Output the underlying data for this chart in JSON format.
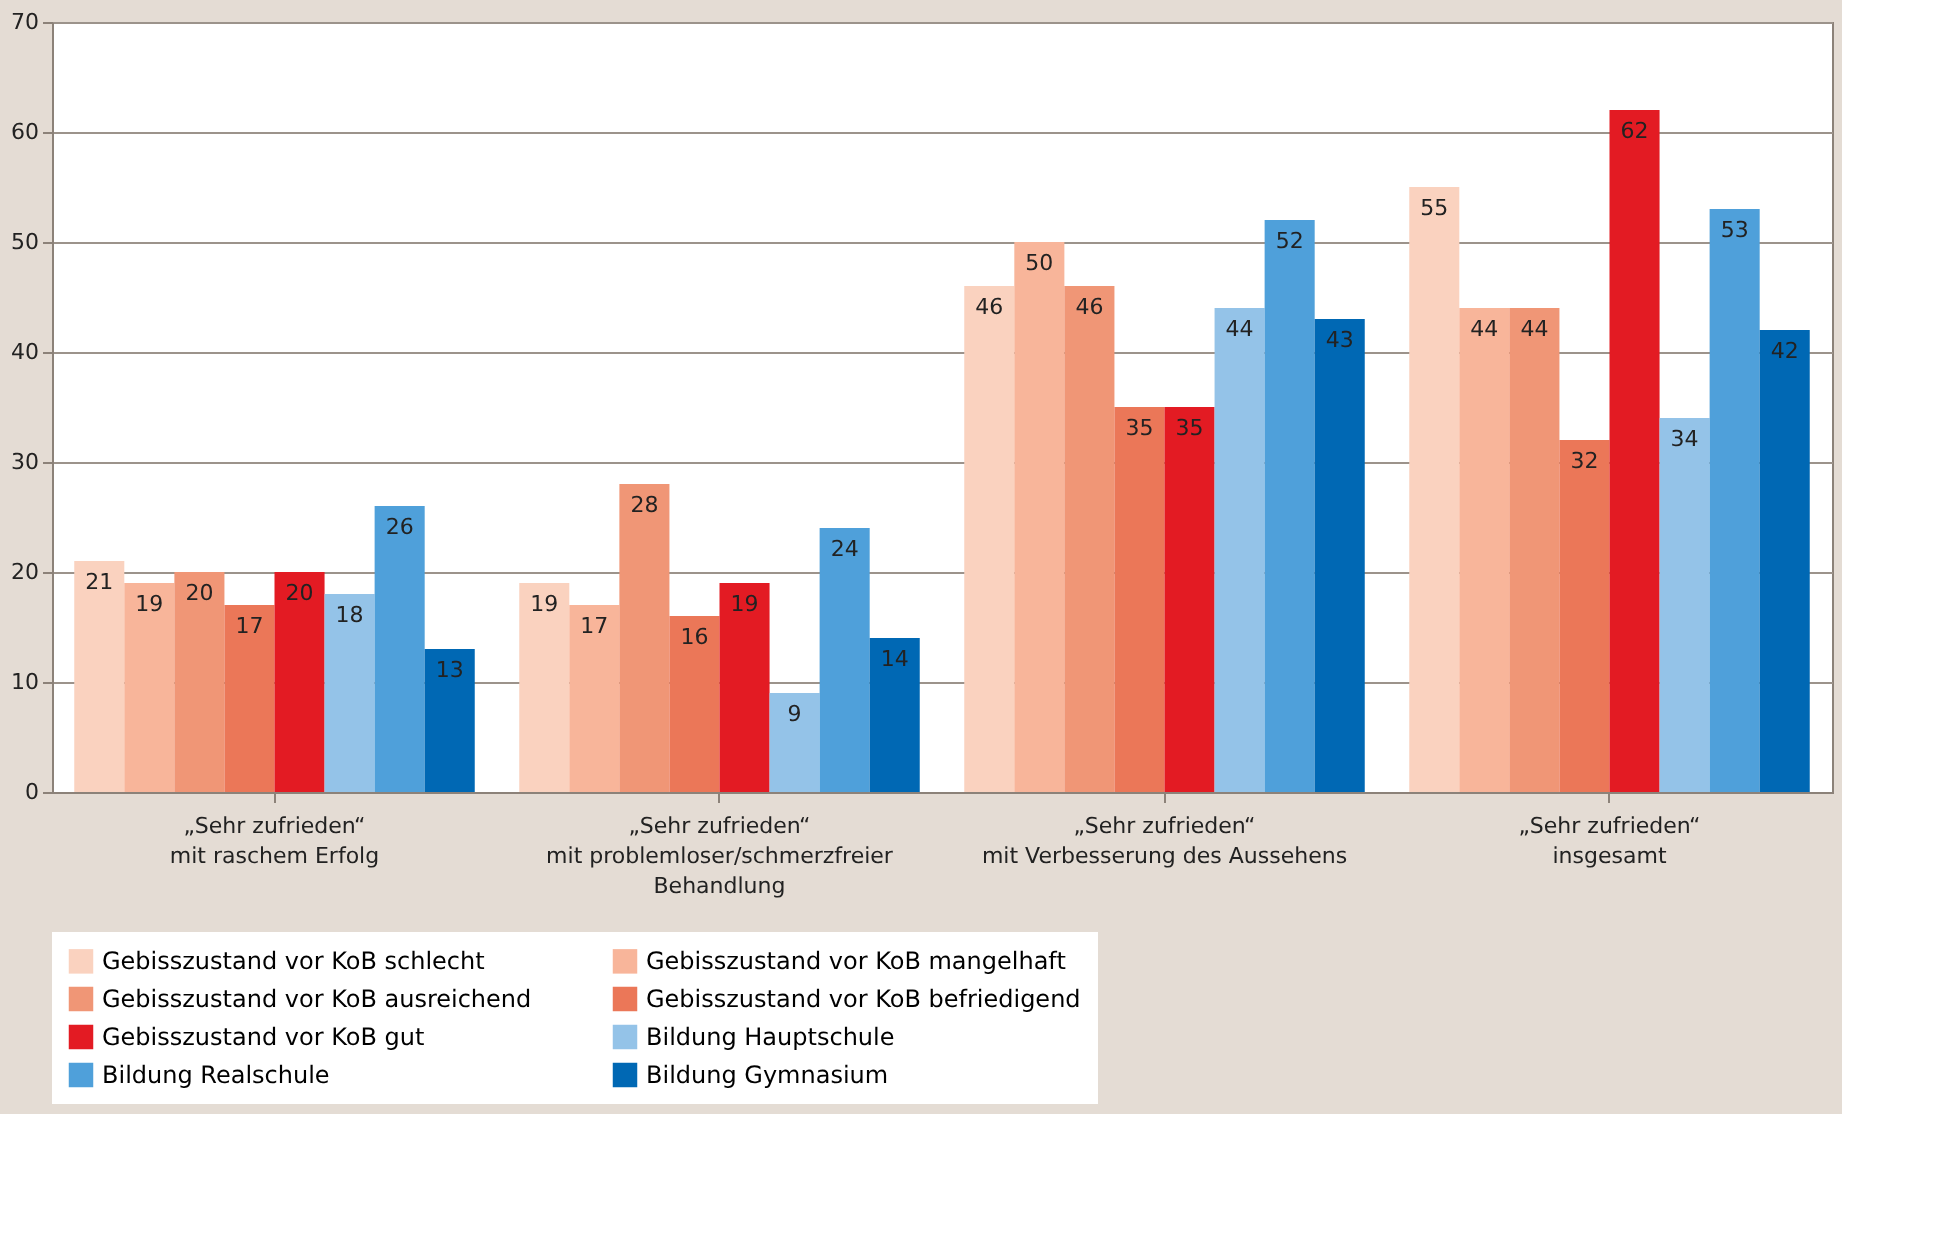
{
  "chart_data": {
    "type": "bar",
    "categories": [
      "„Sehr zufrieden“\nmit raschem Erfolg",
      "„Sehr zufrieden“\nmit problemloser/schmerzfreier\nBehandlung",
      "„Sehr zufrieden“\nmit Verbesserung des Aussehens",
      "„Sehr zufrieden“\ninsgesamt"
    ],
    "series": [
      {
        "name": "Gebisszustand vor KoB schlecht",
        "color": "#fad2bf",
        "values": [
          21,
          19,
          46,
          55
        ]
      },
      {
        "name": "Gebisszustand vor KoB mangelhaft",
        "color": "#f8b59a",
        "values": [
          19,
          17,
          50,
          44
        ]
      },
      {
        "name": "Gebisszustand vor KoB ausreichend",
        "color": "#f09676",
        "values": [
          20,
          28,
          46,
          44
        ]
      },
      {
        "name": "Gebisszustand vor KoB befriedigend",
        "color": "#eb7758",
        "values": [
          17,
          16,
          35,
          32
        ]
      },
      {
        "name": "Gebisszustand vor KoB gut",
        "color": "#e31b23",
        "values": [
          20,
          19,
          35,
          62
        ]
      },
      {
        "name": "Bildung Hauptschule",
        "color": "#94c3e8",
        "values": [
          18,
          9,
          44,
          34
        ]
      },
      {
        "name": "Bildung Realschule",
        "color": "#4fa0da",
        "values": [
          26,
          24,
          52,
          53
        ]
      },
      {
        "name": "Bildung Gymnasium",
        "color": "#0068b4",
        "values": [
          13,
          14,
          43,
          42
        ]
      }
    ],
    "ylim": [
      0,
      70
    ],
    "yticks": [
      0,
      10,
      20,
      30,
      40,
      50,
      60,
      70
    ],
    "grid": "y",
    "legend": "bottom",
    "data_labels": true
  }
}
